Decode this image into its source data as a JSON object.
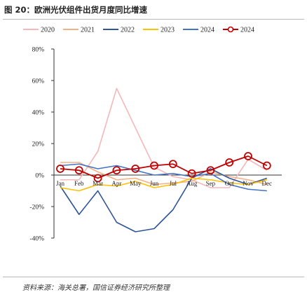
{
  "figure": {
    "title": "图 20：欧洲光伏组件出货月度同比增速",
    "source": "资料来源：海关总署，国信证券经济研究所整理"
  },
  "chart_data": {
    "type": "line",
    "categories": [
      "Jan",
      "Feb",
      "Mar",
      "Apr",
      "May",
      "Jun",
      "Jul",
      "Aug",
      "Sep",
      "Oct",
      "Nov",
      "Dec"
    ],
    "ylim": [
      -40,
      80
    ],
    "yticks": [
      "80%",
      "60%",
      "40%",
      "20%",
      "0%",
      "-20%",
      "-40%"
    ],
    "ytick_values": [
      80,
      60,
      40,
      20,
      0,
      -20,
      -40
    ],
    "y_format": "percent",
    "legend_position": "top",
    "series": [
      {
        "name": "2020",
        "color": "#f4b8bb",
        "marker": "none",
        "values": [
          -3,
          -3,
          15,
          55,
          30,
          5,
          -1,
          -3,
          -8,
          -8,
          10,
          3
        ]
      },
      {
        "name": "2021",
        "color": "#f4b183",
        "marker": "none",
        "values": [
          8,
          8,
          2,
          -3,
          -2,
          -6,
          -5,
          -4,
          2,
          -1,
          -3,
          -6
        ]
      },
      {
        "name": "2022",
        "color": "#2f5597",
        "marker": "none",
        "values": [
          -7,
          -25,
          -10,
          -30,
          -36,
          -34,
          -22,
          -2,
          4,
          -2,
          -6,
          -2
        ]
      },
      {
        "name": "2023",
        "color": "#ffc000",
        "marker": "none",
        "values": [
          -8,
          -10,
          -6,
          -7,
          -4,
          -8,
          -6,
          -2,
          -3,
          -5,
          -6,
          -3
        ]
      },
      {
        "name": "2024",
        "color": "#4472c4",
        "marker": "none",
        "values": [
          6,
          7,
          4,
          6,
          3,
          0,
          1,
          -1,
          1,
          -6,
          -9,
          -10
        ]
      },
      {
        "name": "2024",
        "color": "#c00000",
        "marker": "circle",
        "values": [
          4,
          3,
          -2,
          3,
          4,
          6,
          7,
          1,
          3,
          8,
          12,
          6
        ]
      }
    ]
  }
}
